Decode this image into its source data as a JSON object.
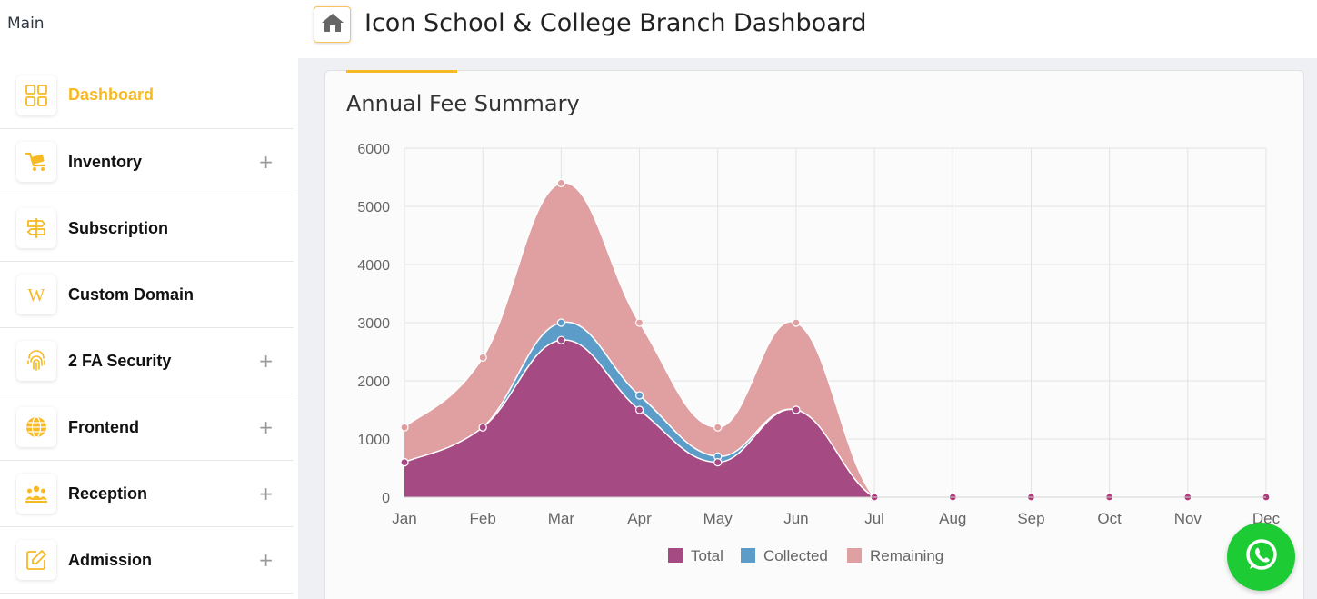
{
  "sidebar": {
    "section_label": "Main",
    "items": [
      {
        "label": "Dashboard",
        "icon": "grid-icon",
        "expandable": false,
        "active": true
      },
      {
        "label": "Inventory",
        "icon": "cart-icon",
        "expandable": true,
        "active": false
      },
      {
        "label": "Subscription",
        "icon": "signpost-icon",
        "expandable": false,
        "active": false
      },
      {
        "label": "Custom Domain",
        "icon": "w-icon",
        "expandable": false,
        "active": false
      },
      {
        "label": "2 FA Security",
        "icon": "fingerprint-icon",
        "expandable": true,
        "active": false
      },
      {
        "label": "Frontend",
        "icon": "globe-icon",
        "expandable": true,
        "active": false
      },
      {
        "label": "Reception",
        "icon": "people-icon",
        "expandable": true,
        "active": false
      },
      {
        "label": "Admission",
        "icon": "edit-icon",
        "expandable": true,
        "active": false
      }
    ],
    "expand_symbol": "+"
  },
  "header": {
    "title": "Icon School & College Branch Dashboard",
    "home_icon": "home-icon"
  },
  "card": {
    "title": "Annual Fee Summary"
  },
  "colors": {
    "accent": "#f7b924",
    "total": "#a54a82",
    "collected": "#5b9cc8",
    "remaining": "#e0a0a2",
    "whatsapp": "#1dcc35"
  },
  "chart_data": {
    "type": "area",
    "categories": [
      "Jan",
      "Feb",
      "Mar",
      "Apr",
      "May",
      "Jun",
      "Jul",
      "Aug",
      "Sep",
      "Oct",
      "Nov",
      "Dec"
    ],
    "ylim": [
      0,
      6000
    ],
    "yticks": [
      0,
      1000,
      2000,
      3000,
      4000,
      5000,
      6000
    ],
    "grid": true,
    "legend_position": "bottom",
    "series": [
      {
        "name": "Total",
        "values": [
          600,
          1200,
          2700,
          1500,
          600,
          1500,
          0,
          0,
          0,
          0,
          0,
          0
        ]
      },
      {
        "name": "Collected",
        "values": [
          600,
          1200,
          3000,
          1750,
          700,
          1500,
          0,
          0,
          0,
          0,
          0,
          0
        ]
      },
      {
        "name": "Remaining",
        "values": [
          1200,
          2400,
          5400,
          3000,
          1200,
          3000,
          0,
          0,
          0,
          0,
          0,
          0
        ]
      }
    ]
  }
}
